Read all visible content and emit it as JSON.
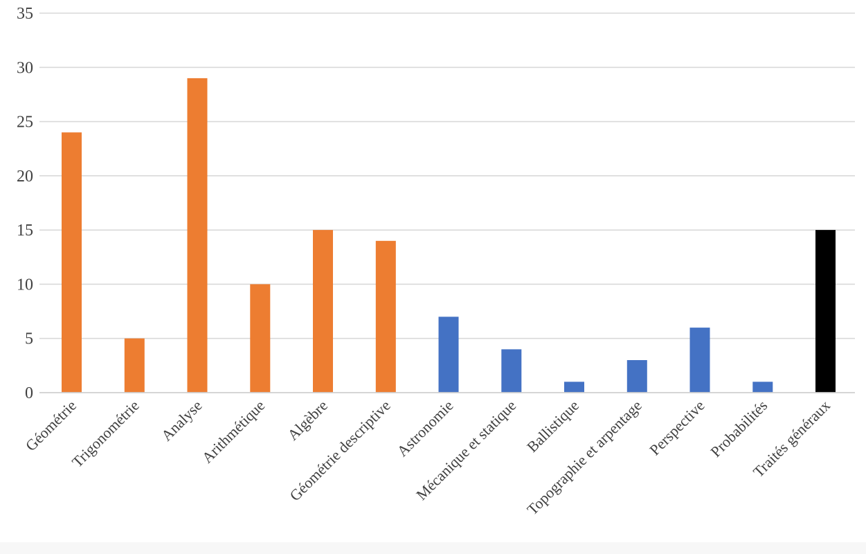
{
  "chart_data": {
    "type": "bar",
    "title": "",
    "xlabel": "",
    "ylabel": "",
    "ylim": [
      0,
      35
    ],
    "yticks": [
      0,
      5,
      10,
      15,
      20,
      25,
      30,
      35
    ],
    "grid": true,
    "legend": "none",
    "categories": [
      "Géométrie",
      "Trigonométrie",
      "Analyse",
      "Arithmétique",
      "Algèbre",
      "Géométrie descriptive",
      "Astronomie",
      "Mécanique et statique",
      "Ballistique",
      "Topographie et arpentage",
      "Perspective",
      "Probabilités",
      "Traités généraux"
    ],
    "values": [
      24,
      5,
      29,
      10,
      15,
      14,
      7,
      4,
      1,
      3,
      6,
      1,
      15
    ],
    "bar_colors": [
      "#ED7D31",
      "#ED7D31",
      "#ED7D31",
      "#ED7D31",
      "#ED7D31",
      "#ED7D31",
      "#4472C4",
      "#4472C4",
      "#4472C4",
      "#4472C4",
      "#4472C4",
      "#4472C4",
      "#000000"
    ]
  }
}
